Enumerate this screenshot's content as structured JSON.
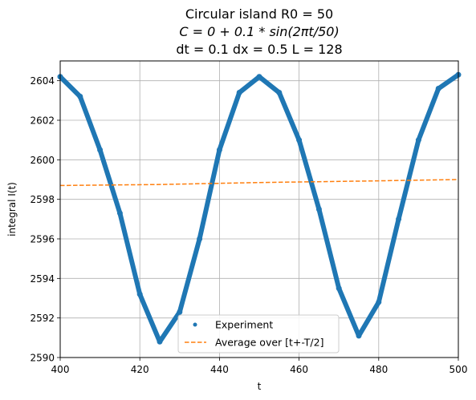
{
  "chart_data": {
    "type": "line",
    "title_lines": [
      "Circular island R0 = 50",
      "C = 0 + 0.1 * sin(2πt/50)",
      "dt = 0.1 dx = 0.5 L = 128"
    ],
    "xlabel": "t",
    "ylabel": "integral I(t)",
    "xlim": [
      400,
      500
    ],
    "ylim": [
      2590,
      2605
    ],
    "xticks": [
      "400",
      "420",
      "440",
      "460",
      "480",
      "500"
    ],
    "yticks": [
      "2590",
      "2592",
      "2594",
      "2596",
      "2598",
      "2600",
      "2602",
      "2604"
    ],
    "grid": true,
    "legend_position": "lower-center",
    "series": [
      {
        "name": "Experiment",
        "style": "points",
        "color": "#1f77b4",
        "x": [
          400,
          405,
          410,
          415,
          420,
          425,
          430,
          435,
          440,
          445,
          450,
          455,
          460,
          465,
          470,
          475,
          480,
          485,
          490,
          495,
          500
        ],
        "y": [
          2604.2,
          2603.2,
          2600.5,
          2597.3,
          2593.2,
          2590.8,
          2592.3,
          2596.0,
          2600.5,
          2603.4,
          2604.2,
          2603.4,
          2601.0,
          2597.5,
          2593.5,
          2591.1,
          2592.8,
          2597.0,
          2601.0,
          2603.6,
          2604.3
        ]
      },
      {
        "name": "Average over [t+-T/2]",
        "style": "dashed",
        "color": "#ff7f0e",
        "x": [
          400,
          425,
          450,
          475,
          500
        ],
        "y": [
          2598.7,
          2598.75,
          2598.85,
          2598.92,
          2599.0
        ]
      }
    ]
  }
}
